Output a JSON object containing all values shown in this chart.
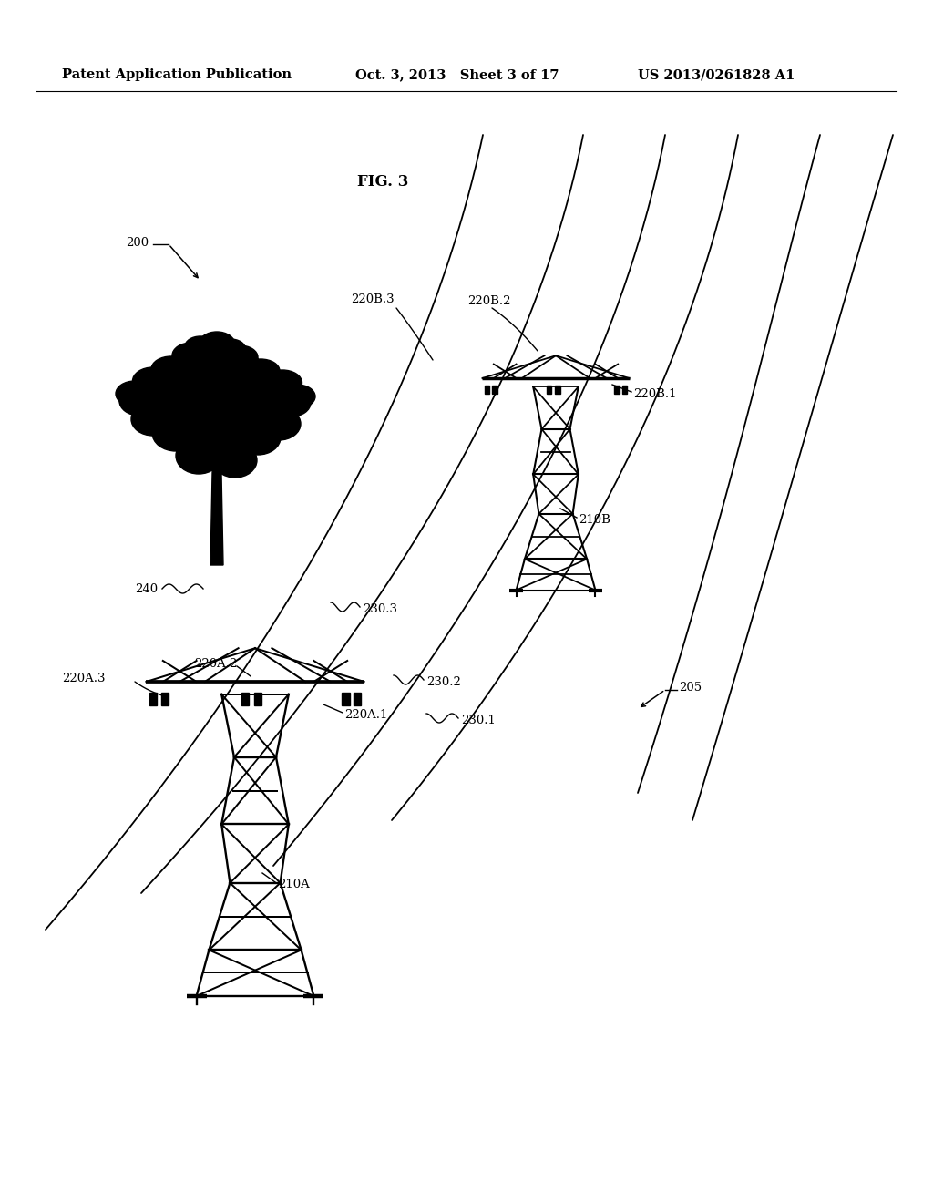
{
  "background_color": "#ffffff",
  "header_left": "Patent Application Publication",
  "header_mid": "Oct. 3, 2013   Sheet 3 of 17",
  "header_right": "US 2013/0261828 A1",
  "fig_label": "FIG. 3",
  "label_200": "200",
  "label_205": "205",
  "label_210A": "210A",
  "label_210B": "210B",
  "label_220A1": "220A.1",
  "label_220A2": "220A.2",
  "label_220A3": "220A.3",
  "label_220B1": "220B.1",
  "label_220B2": "220B.2",
  "label_220B3": "220B.3",
  "label_230_1": "230.1",
  "label_230_2": "230.2",
  "label_230_3": "230.3",
  "label_240": "240",
  "line_color": "#000000",
  "font_size_header": 10.5,
  "font_size_label": 9.5,
  "font_size_figlabel": 12
}
